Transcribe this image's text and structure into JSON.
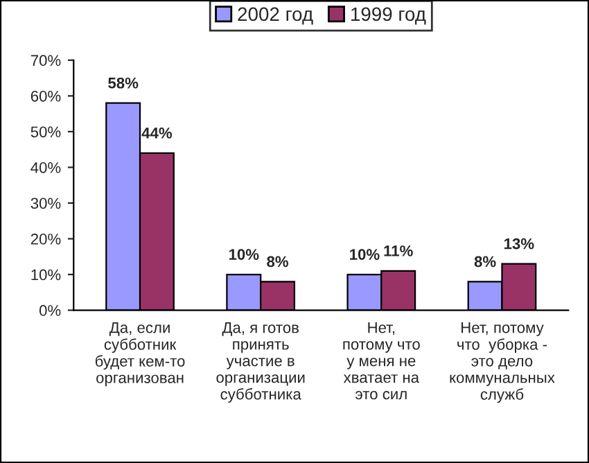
{
  "chart_data": {
    "type": "bar",
    "categories": [
      "Да, если\nсубботник\nбудет кем-то\nорганизован",
      "Да, я готов\nпринять\nучастие в\nорганизации\nсубботника",
      "Нет,\nпотому что\nу меня не\nхватает на\nэто сил",
      "Нет, потому\nчто  уборка -\nэто дело\nкоммунальных\nслужб"
    ],
    "series": [
      {
        "name": "2002 год",
        "color": "#9999ff",
        "values": [
          58,
          10,
          10,
          8
        ],
        "value_labels": [
          "58%",
          "10%",
          "10%",
          "8%"
        ]
      },
      {
        "name": "1999 год",
        "color": "#993366",
        "values": [
          44,
          8,
          11,
          13
        ],
        "value_labels": [
          "44%",
          "8%",
          "11%",
          "13%"
        ]
      }
    ],
    "ylim": [
      0,
      70
    ],
    "yticks": [
      {
        "value": 0,
        "label": "0%"
      },
      {
        "value": 10,
        "label": "10%"
      },
      {
        "value": 20,
        "label": "20%"
      },
      {
        "value": 30,
        "label": "30%"
      },
      {
        "value": 40,
        "label": "40%"
      },
      {
        "value": 50,
        "label": "50%"
      },
      {
        "value": 60,
        "label": "60%"
      },
      {
        "value": 70,
        "label": "70%"
      }
    ],
    "grid": false,
    "legend": "top"
  }
}
